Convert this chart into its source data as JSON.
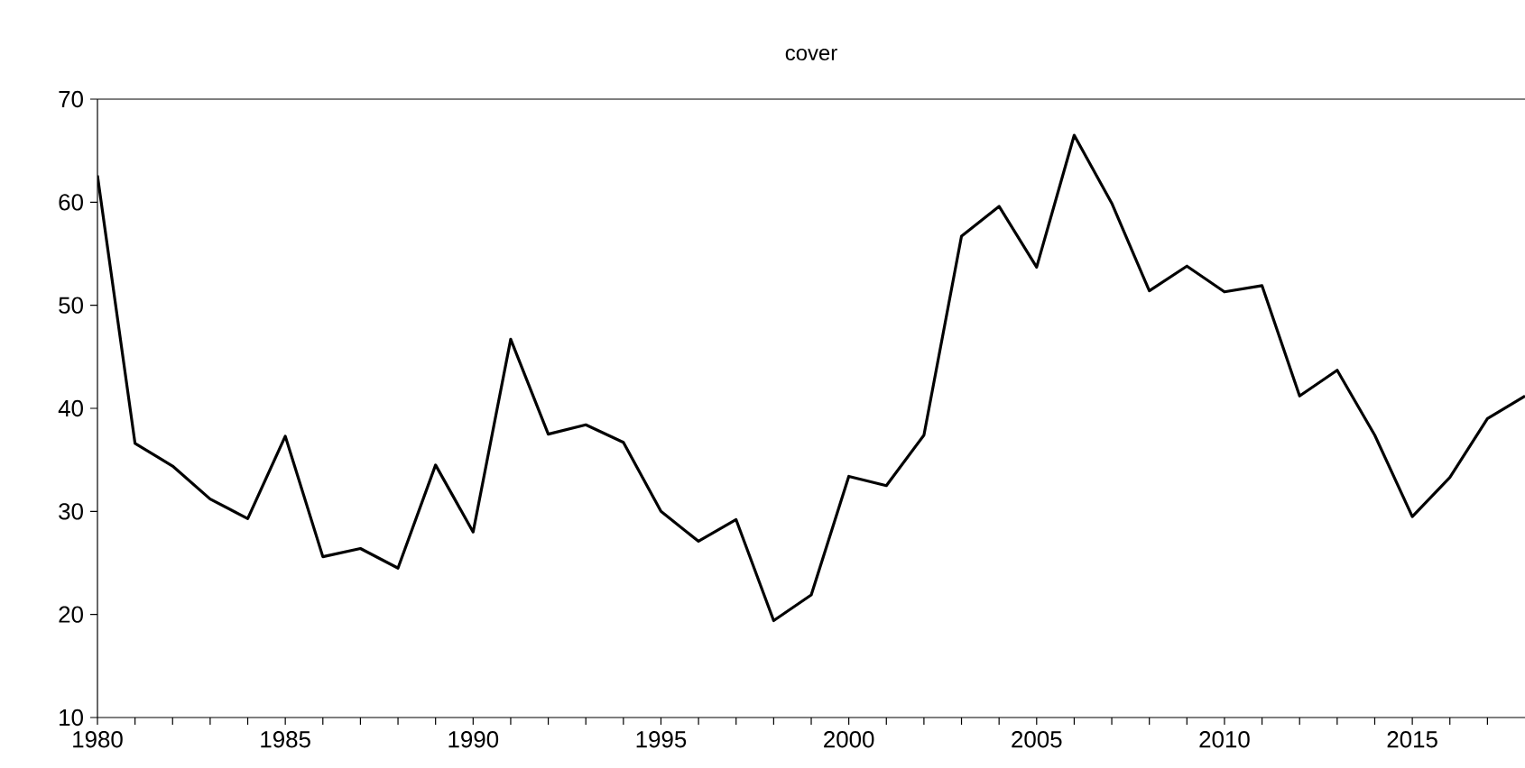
{
  "chart_data": {
    "type": "line",
    "title": "cover",
    "x": [
      1980,
      1981,
      1982,
      1983,
      1984,
      1985,
      1986,
      1987,
      1988,
      1989,
      1990,
      1991,
      1992,
      1993,
      1994,
      1995,
      1996,
      1997,
      1998,
      1999,
      2000,
      2001,
      2002,
      2003,
      2004,
      2005,
      2006,
      2007,
      2008,
      2009,
      2010,
      2011,
      2012,
      2013,
      2014,
      2015,
      2016,
      2017,
      2018
    ],
    "series": [
      {
        "color": "#000000",
        "values": [
          62.6,
          36.6,
          34.4,
          31.2,
          29.3,
          37.3,
          25.6,
          26.4,
          24.5,
          34.5,
          28.0,
          46.7,
          37.5,
          38.4,
          36.7,
          30.0,
          27.1,
          29.2,
          19.4,
          21.9,
          33.4,
          32.5,
          37.4,
          56.7,
          59.6,
          53.7,
          66.5,
          59.9,
          51.4,
          53.8,
          51.3,
          51.9,
          41.2,
          43.7,
          37.4,
          29.5,
          33.3,
          39.0,
          41.2
        ]
      }
    ],
    "xlim": [
      1980,
      2018
    ],
    "xticks": [
      1980,
      {
        "value": 1981,
        "label": null
      },
      {
        "value": 1982,
        "label": null
      },
      {
        "value": 1983,
        "label": null
      },
      {
        "value": 1984,
        "label": null
      },
      1985,
      {
        "value": 1986,
        "label": null
      },
      {
        "value": 1987,
        "label": null
      },
      {
        "value": 1988,
        "label": null
      },
      {
        "value": 1989,
        "label": null
      },
      1990,
      {
        "value": 1991,
        "label": null
      },
      {
        "value": 1992,
        "label": null
      },
      {
        "value": 1993,
        "label": null
      },
      {
        "value": 1994,
        "label": null
      },
      1995,
      {
        "value": 1996,
        "label": null
      },
      {
        "value": 1997,
        "label": null
      },
      {
        "value": 1998,
        "label": null
      },
      {
        "value": 1999,
        "label": null
      },
      2000,
      {
        "value": 2001,
        "label": null
      },
      {
        "value": 2002,
        "label": null
      },
      {
        "value": 2003,
        "label": null
      },
      {
        "value": 2004,
        "label": null
      },
      2005,
      {
        "value": 2006,
        "label": null
      },
      {
        "value": 2007,
        "label": null
      },
      {
        "value": 2008,
        "label": null
      },
      {
        "value": 2009,
        "label": null
      },
      2010,
      {
        "value": 2011,
        "label": null
      },
      {
        "value": 2012,
        "label": null
      },
      {
        "value": 2013,
        "label": null
      },
      {
        "value": 2014,
        "label": null
      },
      2015,
      {
        "value": 2016,
        "label": null
      },
      {
        "value": 2017,
        "label": null
      }
    ],
    "ylim": [
      10,
      70
    ],
    "yticks": [
      10,
      20,
      30,
      40,
      50,
      60,
      70
    ],
    "grid": false,
    "marker": "none",
    "line_style": "solid"
  }
}
